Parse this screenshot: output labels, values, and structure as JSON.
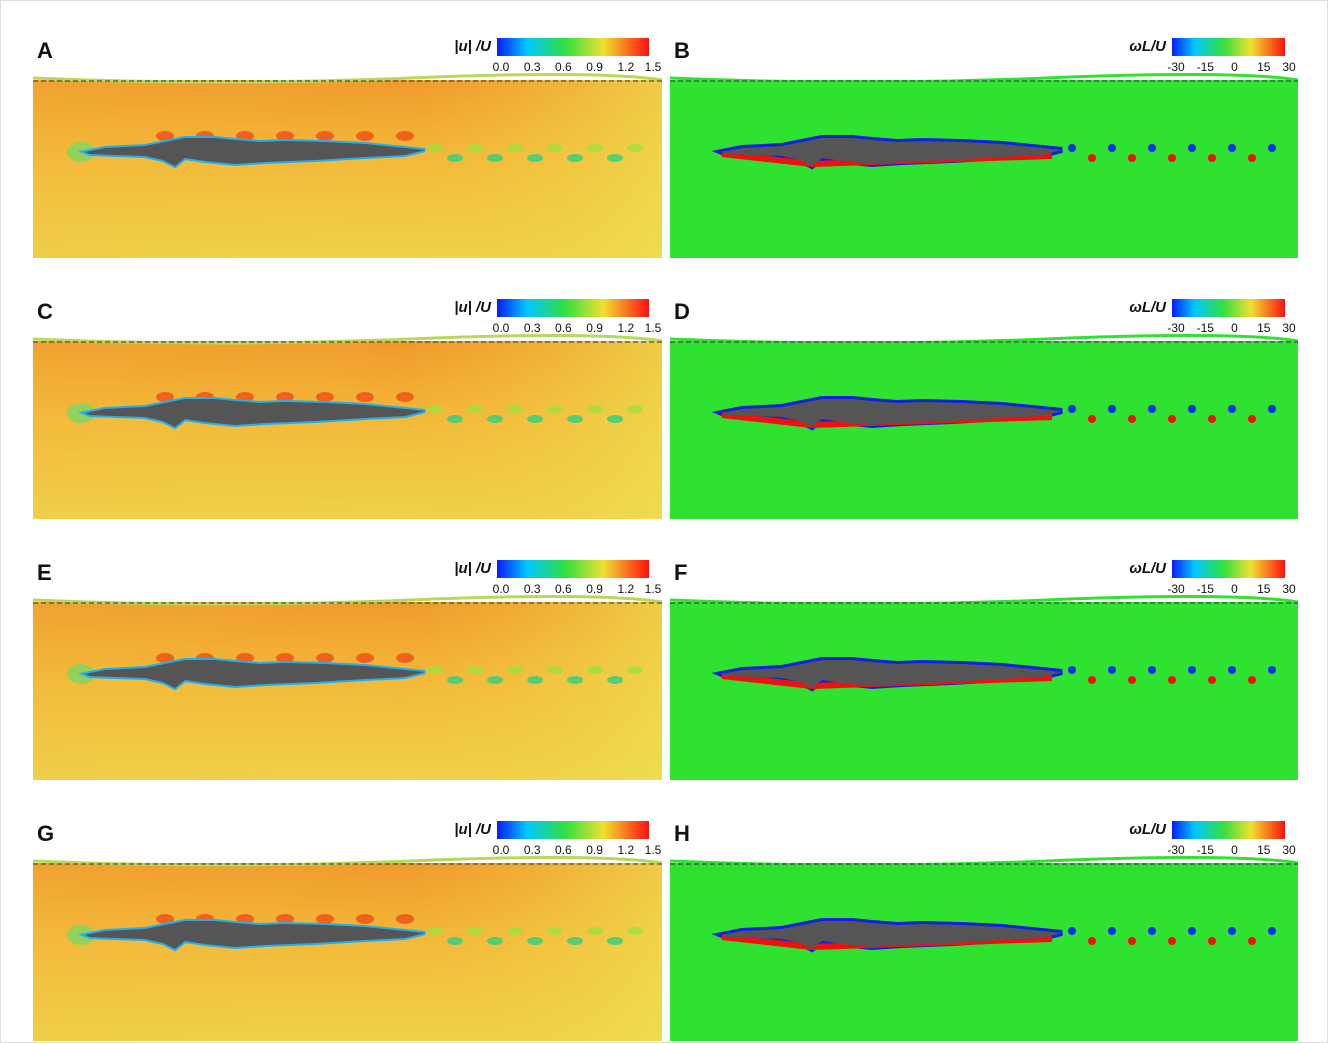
{
  "panels": [
    {
      "label": "A",
      "colorbar": {
        "title": "|u| /U",
        "ticks": [
          "0.0",
          "0.3",
          "0.6",
          "0.9",
          "1.2",
          "1.5"
        ]
      }
    },
    {
      "label": "B",
      "colorbar": {
        "title": "ωL/U",
        "ticks": [
          "-30",
          "-15",
          "0",
          "15",
          "30"
        ]
      }
    },
    {
      "label": "C",
      "colorbar": {
        "title": "|u| /U",
        "ticks": [
          "0.0",
          "0.3",
          "0.6",
          "0.9",
          "1.2",
          "1.5"
        ]
      }
    },
    {
      "label": "D",
      "colorbar": {
        "title": "ωL/U",
        "ticks": [
          "-30",
          "-15",
          "0",
          "15",
          "30"
        ]
      }
    },
    {
      "label": "E",
      "colorbar": {
        "title": "|u| /U",
        "ticks": [
          "0.0",
          "0.3",
          "0.6",
          "0.9",
          "1.2",
          "1.5"
        ]
      }
    },
    {
      "label": "F",
      "colorbar": {
        "title": "ωL/U",
        "ticks": [
          "-30",
          "-15",
          "0",
          "15",
          "30"
        ]
      }
    },
    {
      "label": "G",
      "colorbar": {
        "title": "|u| /U",
        "ticks": [
          "0.0",
          "0.3",
          "0.6",
          "0.9",
          "1.2",
          "1.5"
        ]
      }
    },
    {
      "label": "H",
      "colorbar": {
        "title": "ωL/U",
        "ticks": [
          "-30",
          "-15",
          "0",
          "15",
          "30"
        ]
      }
    }
  ]
}
